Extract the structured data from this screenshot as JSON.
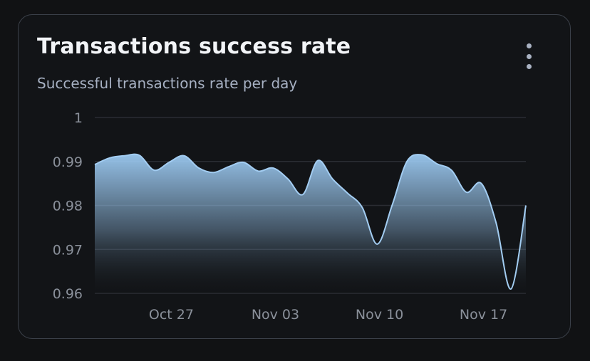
{
  "card": {
    "title": "Transactions success rate",
    "subtitle": "Successful transactions rate per day",
    "menu_icon": "more-vertical-icon"
  },
  "colors": {
    "background": "#111214",
    "card_border": "#3b4049",
    "line": "#a3cdf2",
    "area_top": "#9ccaf2",
    "area_bottom": "#111214",
    "grid": "#2a2d33",
    "tick_text": "#8a909a"
  },
  "chart_data": {
    "type": "area",
    "title": "Transactions success rate",
    "subtitle": "Successful transactions rate per day",
    "xlabel": "",
    "ylabel": "",
    "x": [
      "2023-10-22",
      "2023-10-23",
      "2023-10-24",
      "2023-10-25",
      "2023-10-26",
      "2023-10-27",
      "2023-10-28",
      "2023-10-29",
      "2023-10-30",
      "2023-10-31",
      "2023-11-01",
      "2023-11-02",
      "2023-11-03",
      "2023-11-04",
      "2023-11-05",
      "2023-11-06",
      "2023-11-07",
      "2023-11-08",
      "2023-11-09",
      "2023-11-10",
      "2023-11-11",
      "2023-11-12",
      "2023-11-13",
      "2023-11-14",
      "2023-11-15",
      "2023-11-16",
      "2023-11-17",
      "2023-11-18",
      "2023-11-19",
      "2023-11-20"
    ],
    "series": [
      {
        "values": [
          0.9893,
          0.9908,
          0.9913,
          0.9914,
          0.988,
          0.9898,
          0.9913,
          0.9885,
          0.9875,
          0.9888,
          0.9898,
          0.9878,
          0.9885,
          0.986,
          0.9825,
          0.9902,
          0.986,
          0.9828,
          0.9795,
          0.9712,
          0.98,
          0.99,
          0.9915,
          0.9895,
          0.988,
          0.983,
          0.985,
          0.976,
          0.961,
          0.98
        ]
      }
    ],
    "x_ticks": [
      "Oct 27",
      "Nov 03",
      "Nov 10",
      "Nov 17"
    ],
    "x_tick_positions": [
      "2023-10-26",
      "2023-11-02",
      "2023-11-09",
      "2023-11-16"
    ],
    "y_ticks": [
      0.96,
      0.97,
      0.98,
      0.99,
      1
    ],
    "y_tick_labels": [
      "0.96",
      "0.97",
      "0.98",
      "0.99",
      "1"
    ],
    "ylim": [
      0.96,
      1.0
    ],
    "grid": true,
    "legend": "none"
  }
}
